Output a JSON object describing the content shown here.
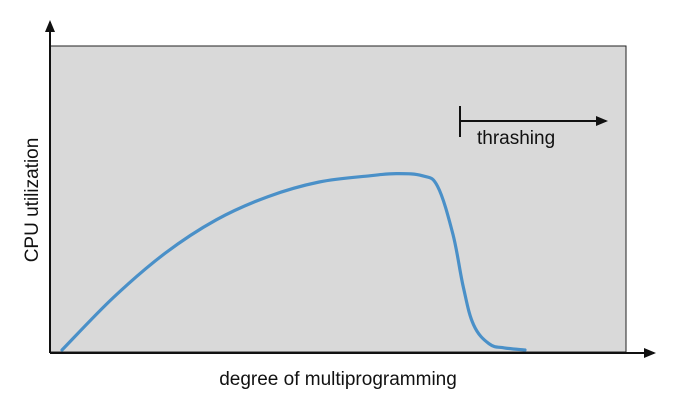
{
  "chart_data": {
    "type": "line",
    "xlabel": "degree of multiprogramming",
    "ylabel": "CPU utilization",
    "grid": false,
    "colors": {
      "plot_background": "#d9d9d9",
      "curve": "#4a90c8",
      "axes": "#111111"
    },
    "series": [
      {
        "curve_shape": "rises steadily, plateaus, then drops sharply",
        "x": [
          0,
          0.1,
          0.2,
          0.3,
          0.4,
          0.5,
          0.6,
          0.65,
          0.7,
          0.73,
          0.76,
          0.78,
          0.8,
          0.83,
          0.86,
          0.9
        ],
        "values": [
          0,
          0.25,
          0.46,
          0.62,
          0.73,
          0.8,
          0.83,
          0.84,
          0.83,
          0.78,
          0.55,
          0.3,
          0.12,
          0.03,
          0.01,
          0
        ]
      }
    ],
    "annotations": [
      {
        "text": "thrashing",
        "arrow": "right"
      }
    ]
  }
}
